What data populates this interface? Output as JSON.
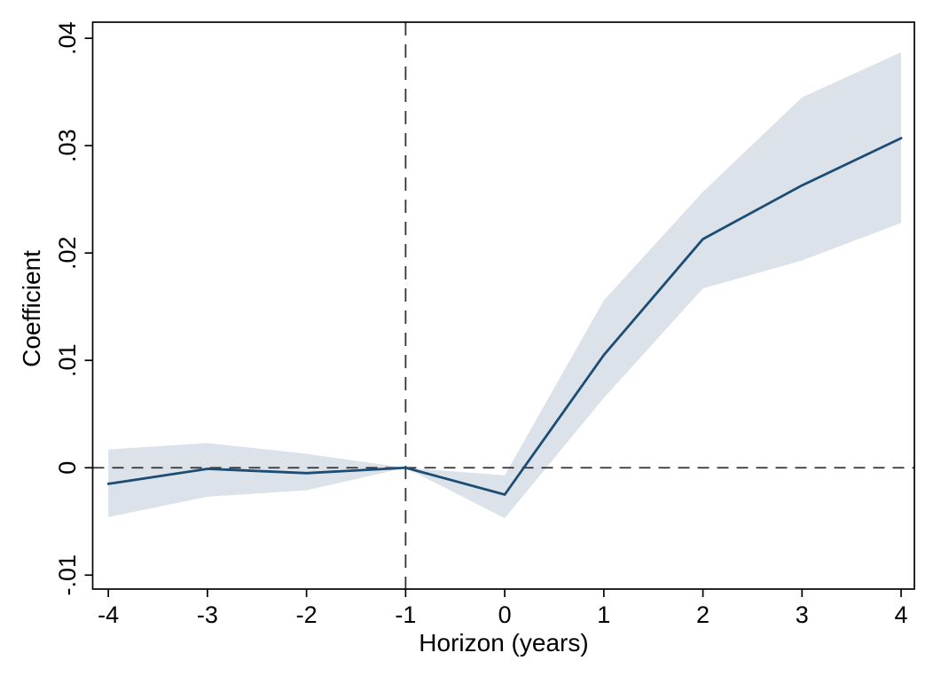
{
  "chart_data": {
    "type": "line",
    "title": "",
    "xlabel": "Horizon (years)",
    "ylabel": "Coefficient",
    "x": [
      -4,
      -3,
      -2,
      -1,
      0,
      1,
      2,
      3,
      4
    ],
    "series": [
      {
        "name": "coefficient",
        "values": [
          -0.0015,
          -0.0001,
          -0.0005,
          0,
          -0.0025,
          0.0105,
          0.0213,
          0.0263,
          0.0307
        ]
      },
      {
        "name": "ci_upper",
        "values": [
          0.0017,
          0.0023,
          0.0013,
          0,
          -0.0007,
          0.0156,
          0.0257,
          0.0345,
          0.0387
        ]
      },
      {
        "name": "ci_lower",
        "values": [
          -0.0046,
          -0.0027,
          -0.0021,
          0,
          -0.0047,
          0.0065,
          0.0167,
          0.0193,
          0.0228
        ]
      }
    ],
    "x_ticks": {
      "values": [
        -4,
        -3,
        -2,
        -1,
        0,
        1,
        2,
        3,
        4
      ],
      "labels": [
        "-4",
        "-3",
        "-2",
        "-1",
        "0",
        "1",
        "2",
        "3",
        "4"
      ]
    },
    "y_ticks": {
      "values": [
        -0.01,
        0,
        0.01,
        0.02,
        0.03,
        0.04
      ],
      "labels": [
        "-.01",
        "0",
        ".01",
        ".02",
        ".03",
        ".04"
      ]
    },
    "xlim": [
      -4.158,
      4.134
    ],
    "ylim": [
      -0.0113,
      0.0415
    ],
    "reference_lines": {
      "horizontal_y": 0,
      "vertical_x": -1,
      "style": "dashed"
    },
    "grid": false,
    "legend": false,
    "colors": {
      "line": "#1d4d74",
      "band": "#dce2e9",
      "frame": "#000000",
      "dashed": "#333333",
      "background": "#ffffff"
    }
  }
}
